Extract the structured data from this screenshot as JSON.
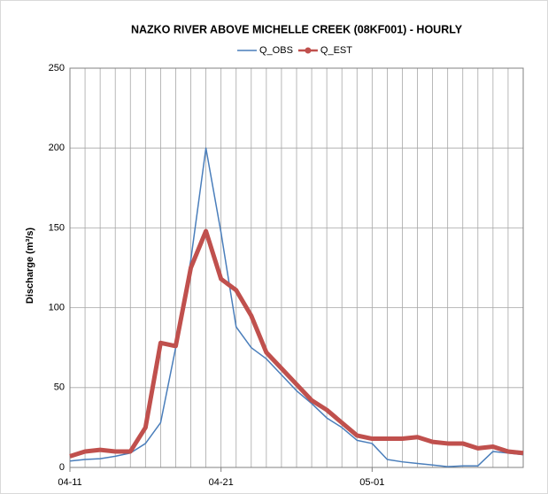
{
  "chart_data": {
    "type": "line",
    "title": "NAZKO RIVER ABOVE MICHELLE CREEK (08KF001) - HOURLY",
    "y_label": "Discharge (m³/s)",
    "x": [
      "04-11",
      "04-12",
      "04-13",
      "04-14",
      "04-15",
      "04-16",
      "04-17",
      "04-18",
      "04-19",
      "04-20",
      "04-21",
      "04-22",
      "04-23",
      "04-24",
      "04-25",
      "04-26",
      "04-27",
      "04-28",
      "04-29",
      "04-30",
      "05-01",
      "05-02",
      "05-03",
      "05-04",
      "05-05",
      "05-06",
      "05-07",
      "05-08",
      "05-09",
      "05-10",
      "05-11"
    ],
    "xlim": [
      "04-11",
      "05-11"
    ],
    "xticks": [
      "04-11",
      "04-21",
      "05-01"
    ],
    "ylim": [
      0,
      250
    ],
    "yticks": [
      0,
      50,
      100,
      150,
      200,
      250
    ],
    "grid": true,
    "legend": "top",
    "series": [
      {
        "name": "Q_OBS",
        "color": "#4a7ebb",
        "values": [
          4,
          5,
          5.5,
          7,
          9,
          15,
          28,
          75,
          130,
          200,
          147,
          88,
          75,
          68,
          58,
          48,
          40,
          31,
          25,
          17,
          15,
          5,
          3.5,
          2.5,
          1.5,
          0.5,
          1,
          1,
          10,
          9,
          8
        ]
      },
      {
        "name": "Q_EST",
        "color": "#c0504d",
        "values": [
          7,
          10,
          11,
          10,
          10,
          25,
          78,
          76,
          125,
          148,
          118,
          111,
          95,
          72,
          62,
          52,
          42,
          36,
          28,
          20,
          18,
          18,
          18,
          19,
          16,
          15,
          15,
          12,
          13,
          10,
          9
        ]
      }
    ]
  }
}
